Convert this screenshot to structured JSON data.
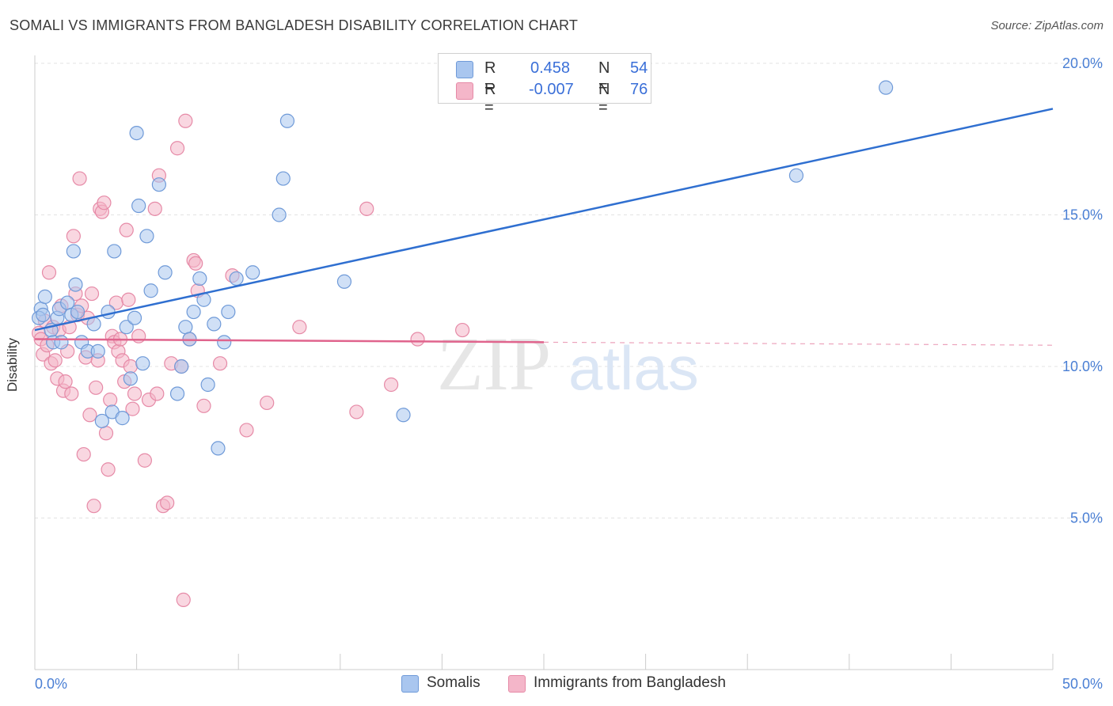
{
  "header": {
    "title": "SOMALI VS IMMIGRANTS FROM BANGLADESH DISABILITY CORRELATION CHART",
    "source": "Source: ZipAtlas.com"
  },
  "watermark": {
    "zip": "ZIP",
    "atlas": "atlas"
  },
  "legend": {
    "rows": [
      {
        "r_label": "R =",
        "r_value": "0.458",
        "n_label": "N =",
        "n_value": "54",
        "color": "#a9c6ef"
      },
      {
        "r_label": "R =",
        "r_value": "-0.007",
        "n_label": "N =",
        "n_value": "76",
        "color": "#f4b6c9"
      }
    ]
  },
  "bottom_legend": [
    {
      "label": "Somalis",
      "color": "#a9c6ef"
    },
    {
      "label": "Immigrants from Bangladesh",
      "color": "#f4b6c9"
    }
  ],
  "colors": {
    "somali_fill": "#a9c6ef",
    "somali_stroke": "#6f9ad8",
    "somali_line": "#2f6fd0",
    "bangla_fill": "#f4b6c9",
    "bangla_stroke": "#e68aa7",
    "bangla_line": "#e0648d",
    "tick_text": "#4a7fd4",
    "grid": "#e3e3e3"
  },
  "chart_data": {
    "type": "scatter",
    "title": "SOMALI VS IMMIGRANTS FROM BANGLADESH DISABILITY CORRELATION CHART",
    "xlabel": "",
    "ylabel": "Disability",
    "xlim": [
      0,
      50
    ],
    "ylim": [
      0,
      20
    ],
    "x_tick_labels": [
      "0.0%",
      "50.0%"
    ],
    "y_ticks": [
      {
        "value": 5,
        "label": "5.0%"
      },
      {
        "value": 10,
        "label": "10.0%"
      },
      {
        "value": 15,
        "label": "15.0%"
      },
      {
        "value": 20,
        "label": "20.0%"
      }
    ],
    "grid": "horizontal dashed",
    "series": [
      {
        "name": "Somalis",
        "trend": {
          "x": [
            0,
            50
          ],
          "y": [
            11.2,
            18.5
          ],
          "style": "solid"
        },
        "points": [
          [
            0.3,
            11.9
          ],
          [
            0.2,
            11.6
          ],
          [
            0.5,
            12.3
          ],
          [
            0.8,
            11.2
          ],
          [
            0.9,
            10.8
          ],
          [
            1.1,
            11.6
          ],
          [
            1.2,
            11.9
          ],
          [
            1.3,
            10.8
          ],
          [
            1.6,
            12.1
          ],
          [
            1.8,
            11.7
          ],
          [
            2.0,
            12.7
          ],
          [
            2.3,
            10.8
          ],
          [
            2.1,
            11.8
          ],
          [
            1.9,
            13.8
          ],
          [
            2.6,
            10.5
          ],
          [
            2.9,
            11.4
          ],
          [
            3.1,
            10.5
          ],
          [
            3.3,
            8.2
          ],
          [
            3.6,
            11.8
          ],
          [
            3.8,
            8.5
          ],
          [
            3.9,
            13.8
          ],
          [
            4.3,
            8.3
          ],
          [
            4.5,
            11.3
          ],
          [
            4.7,
            9.6
          ],
          [
            4.9,
            11.6
          ],
          [
            5.0,
            17.7
          ],
          [
            5.3,
            10.1
          ],
          [
            5.5,
            14.3
          ],
          [
            5.1,
            15.3
          ],
          [
            5.7,
            12.5
          ],
          [
            6.1,
            16.0
          ],
          [
            6.4,
            13.1
          ],
          [
            7.0,
            9.1
          ],
          [
            7.2,
            10.0
          ],
          [
            7.4,
            11.3
          ],
          [
            7.6,
            10.9
          ],
          [
            7.8,
            11.8
          ],
          [
            8.1,
            12.9
          ],
          [
            8.3,
            12.2
          ],
          [
            8.5,
            9.4
          ],
          [
            8.8,
            11.4
          ],
          [
            9.0,
            7.3
          ],
          [
            9.3,
            10.8
          ],
          [
            9.5,
            11.8
          ],
          [
            9.9,
            12.9
          ],
          [
            10.7,
            13.1
          ],
          [
            12.0,
            15.0
          ],
          [
            12.2,
            16.2
          ],
          [
            12.4,
            18.1
          ],
          [
            15.2,
            12.8
          ],
          [
            18.1,
            8.4
          ],
          [
            37.4,
            16.3
          ],
          [
            41.8,
            19.2
          ],
          [
            0.4,
            11.7
          ]
        ]
      },
      {
        "name": "Immigrants from Bangladesh",
        "trend": {
          "x": [
            0,
            25
          ],
          "y": [
            10.9,
            10.8
          ],
          "style": "solid",
          "dashed_to": [
            50,
            10.7
          ]
        },
        "points": [
          [
            0.2,
            11.1
          ],
          [
            0.3,
            10.9
          ],
          [
            0.4,
            10.4
          ],
          [
            0.5,
            11.5
          ],
          [
            0.6,
            10.7
          ],
          [
            0.7,
            13.1
          ],
          [
            0.8,
            10.1
          ],
          [
            0.9,
            11.3
          ],
          [
            1.0,
            10.2
          ],
          [
            1.1,
            9.6
          ],
          [
            1.2,
            11.2
          ],
          [
            1.3,
            12.0
          ],
          [
            1.4,
            9.2
          ],
          [
            1.5,
            9.5
          ],
          [
            1.6,
            10.5
          ],
          [
            1.7,
            11.3
          ],
          [
            1.8,
            9.1
          ],
          [
            1.9,
            14.3
          ],
          [
            2.0,
            12.4
          ],
          [
            2.1,
            11.7
          ],
          [
            2.2,
            16.2
          ],
          [
            2.3,
            12.0
          ],
          [
            2.4,
            7.1
          ],
          [
            2.5,
            10.3
          ],
          [
            2.6,
            11.6
          ],
          [
            2.7,
            8.4
          ],
          [
            2.8,
            12.4
          ],
          [
            2.9,
            5.4
          ],
          [
            3.0,
            9.3
          ],
          [
            3.1,
            10.2
          ],
          [
            3.2,
            15.2
          ],
          [
            3.3,
            15.1
          ],
          [
            3.4,
            15.4
          ],
          [
            3.5,
            7.8
          ],
          [
            3.6,
            6.6
          ],
          [
            3.7,
            8.9
          ],
          [
            3.8,
            11.0
          ],
          [
            3.9,
            10.8
          ],
          [
            4.0,
            12.1
          ],
          [
            4.1,
            10.5
          ],
          [
            4.2,
            10.9
          ],
          [
            4.3,
            10.2
          ],
          [
            4.4,
            9.5
          ],
          [
            4.5,
            14.5
          ],
          [
            4.6,
            12.2
          ],
          [
            4.7,
            10.0
          ],
          [
            4.8,
            8.6
          ],
          [
            4.9,
            9.1
          ],
          [
            5.1,
            11.0
          ],
          [
            5.4,
            6.9
          ],
          [
            5.6,
            8.9
          ],
          [
            5.9,
            15.2
          ],
          [
            6.0,
            9.1
          ],
          [
            6.1,
            16.3
          ],
          [
            6.3,
            5.4
          ],
          [
            6.5,
            5.5
          ],
          [
            6.7,
            10.1
          ],
          [
            7.0,
            17.2
          ],
          [
            7.2,
            10.0
          ],
          [
            7.3,
            2.3
          ],
          [
            7.4,
            18.1
          ],
          [
            7.6,
            10.9
          ],
          [
            7.8,
            13.5
          ],
          [
            7.9,
            13.4
          ],
          [
            8.0,
            12.5
          ],
          [
            8.3,
            8.7
          ],
          [
            9.1,
            10.1
          ],
          [
            9.7,
            13.0
          ],
          [
            10.4,
            7.9
          ],
          [
            11.4,
            8.8
          ],
          [
            13.0,
            11.3
          ],
          [
            15.8,
            8.5
          ],
          [
            16.3,
            15.2
          ],
          [
            17.5,
            9.4
          ],
          [
            18.8,
            10.9
          ],
          [
            21.0,
            11.2
          ]
        ]
      }
    ]
  }
}
